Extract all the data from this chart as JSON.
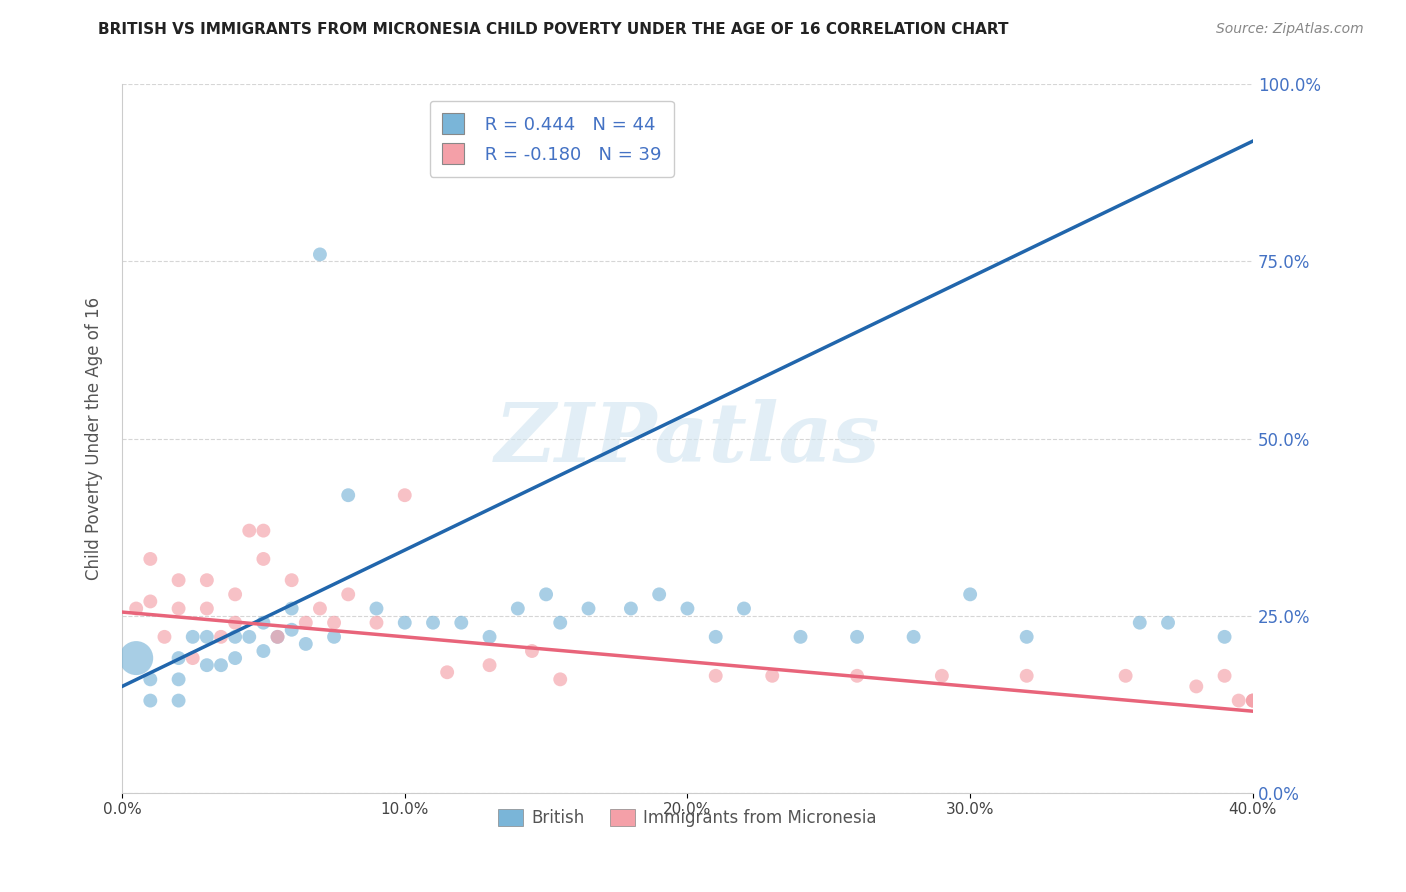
{
  "title": "BRITISH VS IMMIGRANTS FROM MICRONESIA CHILD POVERTY UNDER THE AGE OF 16 CORRELATION CHART",
  "source": "Source: ZipAtlas.com",
  "ylabel": "Child Poverty Under the Age of 16",
  "xlim": [
    0.0,
    0.4
  ],
  "ylim": [
    0.0,
    1.0
  ],
  "xticks": [
    0.0,
    0.1,
    0.2,
    0.3,
    0.4
  ],
  "xtick_labels": [
    "0.0%",
    "10.0%",
    "20.0%",
    "30.0%",
    "40.0%"
  ],
  "yticks": [
    0.0,
    0.25,
    0.5,
    0.75,
    1.0
  ],
  "ytick_labels": [
    "0.0%",
    "25.0%",
    "50.0%",
    "75.0%",
    "100.0%"
  ],
  "british_color": "#7ab5d8",
  "micronesia_color": "#f4a0a8",
  "british_line_color": "#2166ac",
  "micronesia_line_color": "#e8647a",
  "british_R": 0.444,
  "british_N": 44,
  "micronesia_R": -0.18,
  "micronesia_N": 39,
  "legend_label_british": "British",
  "legend_label_micronesia": "Immigrants from Micronesia",
  "watermark": "ZIPatlas",
  "british_line_x0": 0.0,
  "british_line_y0": 0.15,
  "british_line_x1": 0.4,
  "british_line_y1": 0.92,
  "micronesia_line_x0": 0.0,
  "micronesia_line_y0": 0.255,
  "micronesia_line_x1": 0.4,
  "micronesia_line_y1": 0.115,
  "british_x": [
    0.005,
    0.01,
    0.01,
    0.02,
    0.02,
    0.02,
    0.025,
    0.03,
    0.03,
    0.035,
    0.04,
    0.04,
    0.045,
    0.05,
    0.05,
    0.055,
    0.06,
    0.06,
    0.065,
    0.07,
    0.075,
    0.08,
    0.09,
    0.1,
    0.11,
    0.12,
    0.13,
    0.14,
    0.15,
    0.155,
    0.165,
    0.18,
    0.19,
    0.2,
    0.21,
    0.22,
    0.24,
    0.26,
    0.28,
    0.3,
    0.32,
    0.36,
    0.37,
    0.39
  ],
  "british_y": [
    0.19,
    0.16,
    0.13,
    0.19,
    0.16,
    0.13,
    0.22,
    0.22,
    0.18,
    0.18,
    0.22,
    0.19,
    0.22,
    0.2,
    0.24,
    0.22,
    0.26,
    0.23,
    0.21,
    0.76,
    0.22,
    0.42,
    0.26,
    0.24,
    0.24,
    0.24,
    0.22,
    0.26,
    0.28,
    0.24,
    0.26,
    0.26,
    0.28,
    0.26,
    0.22,
    0.26,
    0.22,
    0.22,
    0.22,
    0.28,
    0.22,
    0.24,
    0.24,
    0.22
  ],
  "british_sizes": [
    600,
    100,
    100,
    100,
    100,
    100,
    100,
    100,
    100,
    100,
    100,
    100,
    100,
    100,
    100,
    100,
    100,
    100,
    100,
    100,
    100,
    100,
    100,
    100,
    100,
    100,
    100,
    100,
    100,
    100,
    100,
    100,
    100,
    100,
    100,
    100,
    100,
    100,
    100,
    100,
    100,
    100,
    100,
    100
  ],
  "micronesia_x": [
    0.005,
    0.01,
    0.01,
    0.015,
    0.02,
    0.02,
    0.025,
    0.03,
    0.03,
    0.035,
    0.04,
    0.04,
    0.045,
    0.05,
    0.05,
    0.055,
    0.06,
    0.065,
    0.07,
    0.075,
    0.08,
    0.09,
    0.1,
    0.115,
    0.13,
    0.145,
    0.155,
    0.21,
    0.23,
    0.26,
    0.29,
    0.32,
    0.355,
    0.38,
    0.39,
    0.395,
    0.4,
    0.4,
    0.4
  ],
  "micronesia_y": [
    0.26,
    0.33,
    0.27,
    0.22,
    0.3,
    0.26,
    0.19,
    0.3,
    0.26,
    0.22,
    0.28,
    0.24,
    0.37,
    0.37,
    0.33,
    0.22,
    0.3,
    0.24,
    0.26,
    0.24,
    0.28,
    0.24,
    0.42,
    0.17,
    0.18,
    0.2,
    0.16,
    0.165,
    0.165,
    0.165,
    0.165,
    0.165,
    0.165,
    0.15,
    0.165,
    0.13,
    0.13,
    0.13,
    0.13
  ],
  "micronesia_sizes": [
    100,
    100,
    100,
    100,
    100,
    100,
    100,
    100,
    100,
    100,
    100,
    100,
    100,
    100,
    100,
    100,
    100,
    100,
    100,
    100,
    100,
    100,
    100,
    100,
    100,
    100,
    100,
    100,
    100,
    100,
    100,
    100,
    100,
    100,
    100,
    100,
    100,
    100,
    100
  ]
}
